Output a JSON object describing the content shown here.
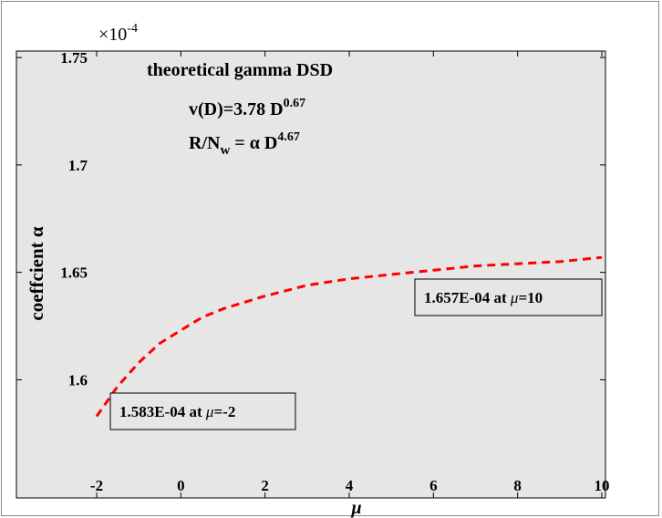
{
  "chart_data": {
    "type": "line",
    "xlabel": "μ",
    "ylabel": "coeffcient  α",
    "exponent_label": {
      "base": "×10",
      "power": "-4"
    },
    "xlim": [
      -2,
      10
    ],
    "ylim": [
      1.545,
      1.753
    ],
    "xticks": [
      -2,
      0,
      2,
      4,
      6,
      8,
      10
    ],
    "xtick_labels": [
      "-2",
      "0",
      "2",
      "4",
      "6",
      "8",
      "10"
    ],
    "yticks": [
      1.6,
      1.65,
      1.7,
      1.75
    ],
    "ytick_labels": [
      "1.6",
      "1.65",
      "1.7",
      "1.75"
    ],
    "grid": false,
    "background_color": "#e6e6e6",
    "series": [
      {
        "color": "#ff0000",
        "line_style": "dashed",
        "x": [
          -2,
          -1.5,
          -1,
          -0.5,
          0,
          0.5,
          1,
          1.5,
          2,
          3,
          4,
          5,
          6,
          7,
          8,
          9,
          10
        ],
        "y": [
          1.583,
          1.597,
          1.608,
          1.617,
          1.623,
          1.629,
          1.633,
          1.636,
          1.639,
          1.644,
          1.647,
          1.649,
          1.651,
          1.653,
          1.654,
          1.655,
          1.657
        ]
      }
    ],
    "text_block": {
      "line1": "theoretical gamma DSD",
      "line2_main": "v(D)=3.78 D",
      "line2_sup": "0.67",
      "line3_main": "R/N",
      "line3_sub": "w",
      "line3_mid": " = α D",
      "line3_sup": "4.67"
    },
    "annotations": [
      {
        "prefix": "1.657E-04 at ",
        "symbol": "μ",
        "suffix": "=10"
      },
      {
        "prefix": "1.583E-04 at ",
        "symbol": "μ",
        "suffix": "=-2"
      }
    ]
  }
}
